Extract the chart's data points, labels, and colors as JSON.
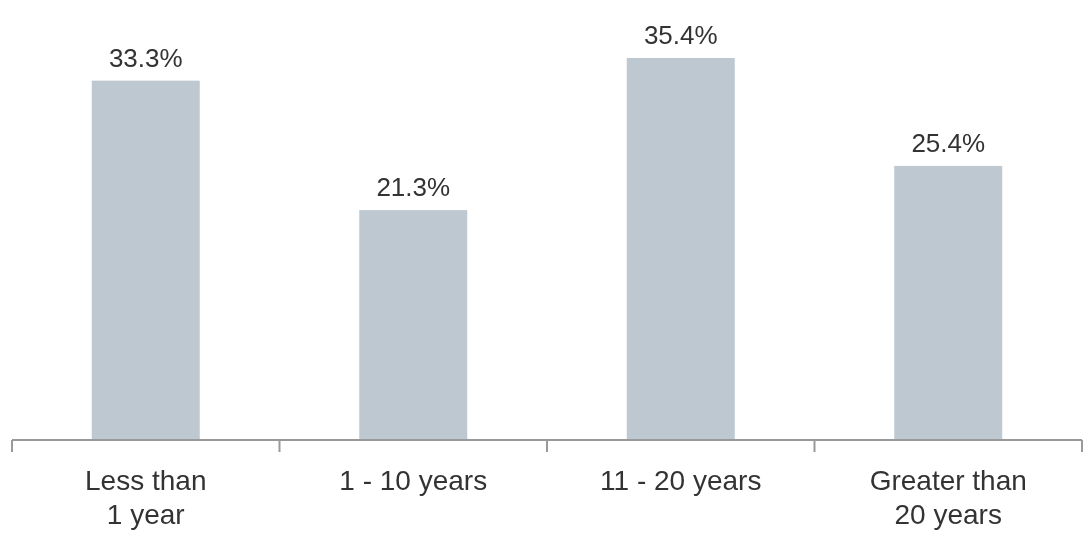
{
  "chart_data": {
    "type": "bar",
    "categories": [
      "Less than 1 year",
      "1 - 10 years",
      "11 - 20 years",
      "Greater than 20 years"
    ],
    "values": [
      33.3,
      21.3,
      35.4,
      25.4
    ],
    "value_labels": [
      "33.3%",
      "21.3%",
      "35.4%",
      "25.4%"
    ],
    "color": "#bec8d0"
  }
}
